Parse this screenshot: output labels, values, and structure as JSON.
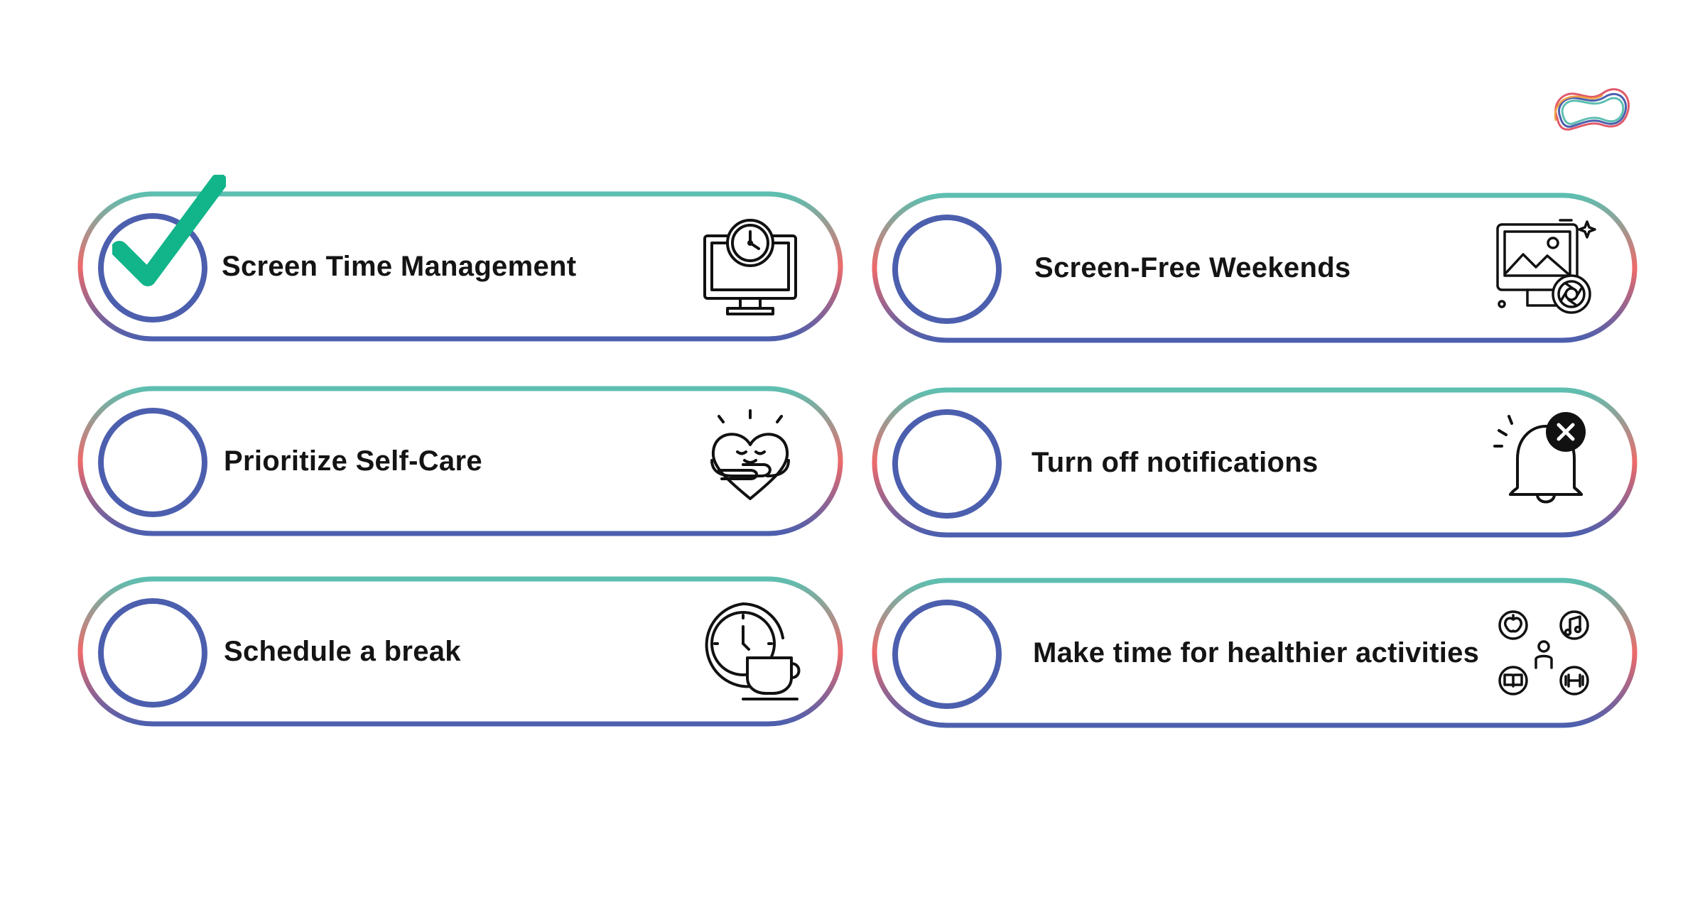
{
  "logo": {
    "icon": "brain-outline-logo",
    "colors": [
      "#e05a6a",
      "#4c5fae",
      "#5dbfb0",
      "#f0a040"
    ]
  },
  "colors": {
    "border_top": "#5dbfb0",
    "border_left": "#ee6a6a",
    "border_bottom": "#4c5fae",
    "circle": "#4c5fae",
    "check": "#12b48a",
    "text": "#141414"
  },
  "items": [
    {
      "label": "Screen Time Management",
      "checked": true,
      "icon": "monitor-clock-icon"
    },
    {
      "label": "Screen-Free Weekends",
      "checked": false,
      "icon": "photo-camera-screen-icon"
    },
    {
      "label": "Prioritize Self-Care",
      "checked": false,
      "icon": "self-hug-heart-icon"
    },
    {
      "label": "Turn off notifications",
      "checked": false,
      "icon": "bell-off-icon"
    },
    {
      "label": "Schedule a break",
      "checked": false,
      "icon": "clock-coffee-cup-icon"
    },
    {
      "label": "Make time for healthier activities",
      "checked": false,
      "icon": "activities-icon"
    }
  ]
}
